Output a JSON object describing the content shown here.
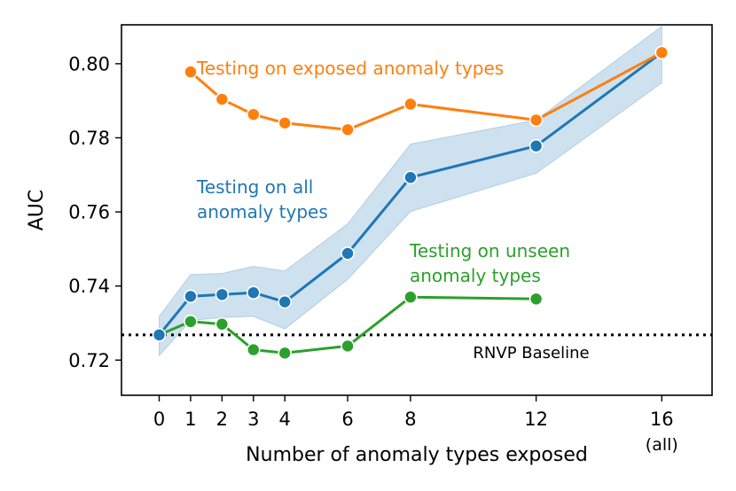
{
  "chart_data": {
    "type": "line",
    "xlabel": "Number of anomaly types exposed",
    "ylabel": "AUC",
    "xlim": [
      -1.2,
      17.6
    ],
    "ylim": [
      0.7105,
      0.8105
    ],
    "x_ticks": [
      0,
      1,
      2,
      3,
      4,
      6,
      8,
      12,
      16
    ],
    "x_tick_labels": [
      "0",
      "1",
      "2",
      "3",
      "4",
      "6",
      "8",
      "12",
      "16"
    ],
    "x_tick_sublabel": "(all)",
    "y_ticks": [
      0.72,
      0.74,
      0.76,
      0.78,
      0.8
    ],
    "y_tick_labels": [
      "0.72",
      "0.74",
      "0.76",
      "0.78",
      "0.80"
    ],
    "grid": false,
    "series": [
      {
        "name": "Testing on exposed anomaly types",
        "label_lines": [
          "Testing on exposed anomaly types"
        ],
        "color": "#ff7f0e",
        "x": [
          1,
          2,
          3,
          4,
          6,
          8,
          12,
          16
        ],
        "values": [
          0.7978,
          0.7904,
          0.7863,
          0.784,
          0.7822,
          0.7891,
          0.7848,
          0.803
        ]
      },
      {
        "name": "Testing on all anomaly types",
        "label_lines": [
          "Testing on all",
          "anomaly types"
        ],
        "color": "#1f77b4",
        "x": [
          0,
          1,
          2,
          3,
          4,
          6,
          8,
          12,
          16
        ],
        "values": [
          0.7268,
          0.7372,
          0.7377,
          0.7382,
          0.7357,
          0.7488,
          0.7693,
          0.7778,
          0.803
        ],
        "band_lower": [
          0.7212,
          0.7307,
          0.7315,
          0.7318,
          0.7284,
          0.7418,
          0.7601,
          0.7704,
          0.7948
        ],
        "band_upper": [
          0.7318,
          0.7431,
          0.7434,
          0.7453,
          0.7441,
          0.7568,
          0.7783,
          0.7848,
          0.8101
        ]
      },
      {
        "name": "Testing on unseen anomaly types",
        "label_lines": [
          "Testing on unseen",
          "anomaly types"
        ],
        "color": "#2ca02c",
        "x": [
          0,
          1,
          2,
          3,
          4,
          6,
          8,
          12
        ],
        "values": [
          0.7268,
          0.7304,
          0.7297,
          0.7228,
          0.7219,
          0.7238,
          0.737,
          0.7365
        ]
      }
    ],
    "baseline": {
      "name": "RNVP Baseline",
      "value": 0.7268,
      "color": "#000000"
    }
  }
}
